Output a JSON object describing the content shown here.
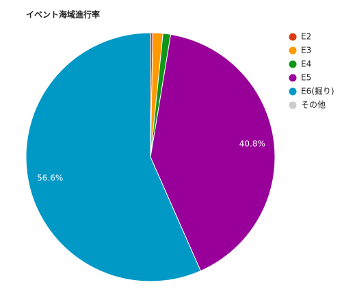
{
  "chart_data": {
    "type": "pie",
    "title": "イベント海域進行率",
    "categories": [
      "E2",
      "E3",
      "E4",
      "E5",
      "E6(掘り)",
      "その他"
    ],
    "values": [
      0.3,
      1.3,
      1.0,
      40.8,
      56.6,
      0
    ],
    "value_labels": [
      null,
      null,
      null,
      "40.8%",
      "56.6%",
      null
    ],
    "colors": [
      "#dc3912",
      "#ff9900",
      "#109618",
      "#990099",
      "#0099c6",
      "#cccccc"
    ],
    "legend": "right"
  }
}
